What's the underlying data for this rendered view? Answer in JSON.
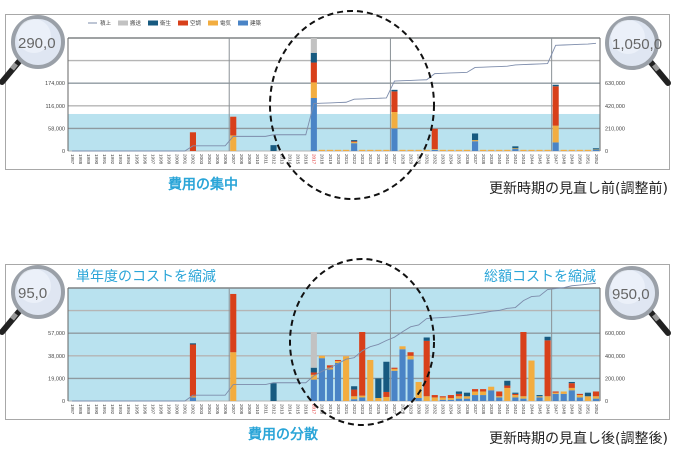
{
  "legend": {
    "line_label": "積上",
    "series": [
      {
        "key": "kenchiku",
        "label": "建築",
        "color": "#4a84c6"
      },
      {
        "key": "denki",
        "label": "電気",
        "color": "#f2ad40"
      },
      {
        "key": "kucho",
        "label": "空調",
        "color": "#d8401a"
      },
      {
        "key": "eisei",
        "label": "衛生",
        "color": "#175a80"
      },
      {
        "key": "hanso",
        "label": "搬送",
        "color": "#c2c2c2"
      }
    ],
    "line_color": "#7d8cab"
  },
  "captions": {
    "top_center": "費用の集中",
    "top_right": "更新時期の見直し前(調整前)",
    "bottom_left": "単年度のコストを縮減",
    "bottom_right_top": "総額コストを縮減",
    "bottom_center": "費用の分散",
    "bottom_right": "更新時期の見直し後(調整後)"
  },
  "colors": {
    "band": "#b9e2ef",
    "highlight_year": "#e03030",
    "accent_text": "#2aa5d8"
  },
  "chart_data": [
    {
      "type": "bar",
      "stacked": true,
      "title": "",
      "x_start": 1987,
      "x_end": 2052,
      "highlight_year": 2017,
      "year_dividers": [
        2007,
        2027,
        2047
      ],
      "segment_order": [
        "建築",
        "電気",
        "空調",
        "衛生",
        "搬送"
      ],
      "ylim": [
        0,
        290000
      ],
      "y_ticks": [
        "0",
        "58,000",
        "116,000",
        "174,000",
        ""
      ],
      "y_top_magnified": "290,0",
      "y2lim": [
        0,
        1050000
      ],
      "y2_ticks": [
        "0",
        "210,000",
        "420,000",
        "630,000",
        ""
      ],
      "y2_top_magnified": "1,050,0",
      "band_limit": 95000,
      "line": "cumulative",
      "default_small": {
        "from": 2018,
        "to": 2052,
        "values": [
          0,
          3000,
          0,
          0,
          0
        ]
      },
      "bars": {
        "2002": [
          0,
          0,
          48000,
          0,
          0
        ],
        "2007": [
          0,
          40000,
          48000,
          0,
          0
        ],
        "2012": [
          0,
          0,
          0,
          15000,
          0
        ],
        "2017": [
          136000,
          40000,
          51000,
          25000,
          38000
        ],
        "2022": [
          20000,
          3000,
          2000,
          3000,
          0
        ],
        "2027": [
          58000,
          42000,
          53000,
          4000,
          0
        ],
        "2032": [
          3000,
          2000,
          52000,
          0,
          0
        ],
        "2037": [
          25000,
          3000,
          0,
          17000,
          0
        ],
        "2042": [
          5000,
          2000,
          0,
          5000,
          0
        ],
        "2047": [
          22000,
          43000,
          101000,
          4000,
          0
        ],
        "2052": [
          3000,
          1000,
          0,
          3000,
          0
        ]
      }
    },
    {
      "type": "bar",
      "stacked": true,
      "title": "",
      "x_start": 1987,
      "x_end": 2052,
      "highlight_year": 2017,
      "year_dividers": [
        2007,
        2027,
        2047
      ],
      "segment_order": [
        "建築",
        "電気",
        "空調",
        "衛生",
        "搬送"
      ],
      "ylim": [
        0,
        95000
      ],
      "y_ticks": [
        "0",
        "19,000",
        "38,000",
        "57,000",
        ""
      ],
      "y_top_magnified": "95,0",
      "y2lim": [
        0,
        950000
      ],
      "y2_ticks": [
        "0",
        "200,000",
        "400,000",
        "600,000",
        ""
      ],
      "y2_top_magnified": "950,0",
      "band_limit": 95000,
      "line": "cumulative",
      "bars": {
        "2002": [
          3000,
          1000,
          43500,
          1000,
          0
        ],
        "2007": [
          0,
          41000,
          49000,
          0,
          0
        ],
        "2012": [
          0,
          0,
          0,
          15000,
          0
        ],
        "2017": [
          18000,
          4000,
          2000,
          4000,
          30000
        ],
        "2018": [
          36000,
          2000,
          0,
          0,
          0
        ],
        "2019": [
          26500,
          1500,
          2000,
          0,
          0
        ],
        "2020": [
          32000,
          1600,
          900,
          0,
          0
        ],
        "2021": [
          0,
          37600,
          0,
          0,
          0
        ],
        "2022": [
          1500,
          2500,
          5600,
          2800,
          0
        ],
        "2023": [
          3000,
          1500,
          53500,
          0,
          0
        ],
        "2024": [
          0,
          34500,
          0,
          0,
          0
        ],
        "2025": [
          0,
          2500,
          0,
          16500,
          0
        ],
        "2026": [
          0,
          3400,
          4200,
          25400,
          0
        ],
        "2027": [
          25400,
          1600,
          1000,
          0,
          0
        ],
        "2028": [
          43500,
          2500,
          0,
          0,
          0
        ],
        "2029": [
          35000,
          3000,
          3000,
          0,
          0
        ],
        "2030": [
          2500,
          13500,
          0,
          0,
          0
        ],
        "2031": [
          0,
          4000,
          46600,
          2800,
          0
        ],
        "2032": [
          0,
          3000,
          2000,
          0,
          0
        ],
        "2033": [
          1000,
          2000,
          1000,
          0,
          0
        ],
        "2034": [
          1000,
          1500,
          2500,
          0,
          0
        ],
        "2035": [
          2000,
          2000,
          2000,
          2000,
          0
        ],
        "2036": [
          2000,
          2000,
          0,
          3000,
          0
        ],
        "2037": [
          5000,
          3000,
          2000,
          0,
          0
        ],
        "2038": [
          5000,
          3000,
          2000,
          0,
          0
        ],
        "2039": [
          9000,
          3000,
          0,
          0,
          0
        ],
        "2040": [
          3000,
          1000,
          4000,
          0,
          0
        ],
        "2041": [
          0,
          11000,
          2000,
          4000,
          0
        ],
        "2042": [
          3000,
          2000,
          1000,
          1000,
          0
        ],
        "2043": [
          2000,
          2000,
          54000,
          0,
          0
        ],
        "2044": [
          0,
          34000,
          0,
          0,
          0
        ],
        "2045": [
          3000,
          1000,
          0,
          1000,
          0
        ],
        "2046": [
          0,
          4000,
          47000,
          3000,
          0
        ],
        "2047": [
          6000,
          1000,
          1000,
          0,
          0
        ],
        "2048": [
          6000,
          2000,
          0,
          0,
          0
        ],
        "2049": [
          9000,
          2000,
          4000,
          1000,
          0
        ],
        "2050": [
          3000,
          2000,
          1000,
          0,
          0
        ],
        "2051": [
          0,
          4000,
          0,
          3000,
          0
        ],
        "2052": [
          2000,
          2000,
          4000,
          0,
          0
        ]
      }
    }
  ]
}
